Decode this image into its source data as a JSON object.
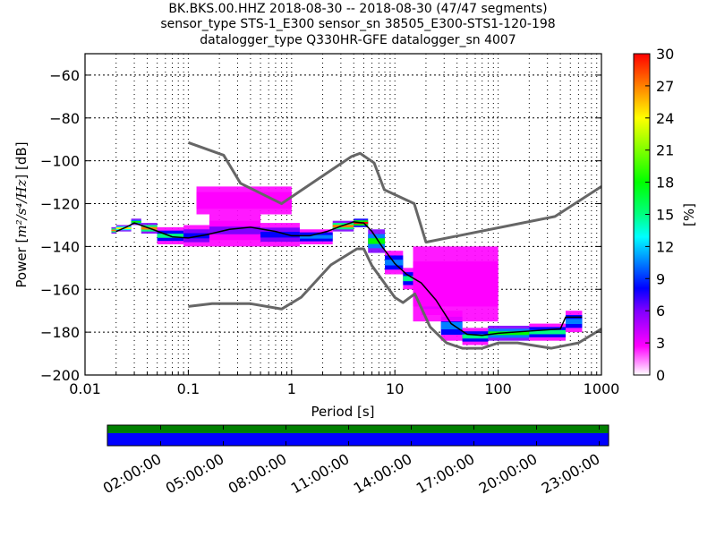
{
  "title_lines": [
    "BK.BKS.00.HHZ   2018-08-30 -- 2018-08-30  (47/47 segments)",
    "sensor_type STS-1_E300 sensor_sn 38505_E300-STS1-120-198",
    "datalogger_type Q330HR-GFE datalogger_sn 4007"
  ],
  "chart_data": {
    "type": "heatmap",
    "title": "BK.BKS.00.HHZ   2018-08-30 -- 2018-08-30  (47/47 segments)",
    "xlabel": "Period [s]",
    "ylabel": "Power [m^2/s^4/Hz] [dB]",
    "ylabel_parts": {
      "prefix": "Power [",
      "unit": "m²/s⁴/Hz",
      "suffix": "] [dB]"
    },
    "xscale": "log",
    "xlim": [
      0.01,
      1000
    ],
    "ylim": [
      -200,
      -50
    ],
    "xticks": [
      0.01,
      0.1,
      1,
      10,
      100,
      1000
    ],
    "xtick_labels": [
      "0.01",
      "0.1",
      "1",
      "10",
      "100",
      "1000"
    ],
    "yticks": [
      -60,
      -80,
      -100,
      -120,
      -140,
      -160,
      -180,
      -200
    ],
    "ytick_labels": [
      "−60",
      "−80",
      "−100",
      "−120",
      "−140",
      "−160",
      "−180",
      "−200"
    ],
    "grid": true,
    "colorbar": {
      "label": "[%]",
      "range": [
        0,
        30
      ],
      "ticks": [
        0,
        3,
        6,
        9,
        12,
        15,
        18,
        21,
        24,
        27,
        30
      ],
      "tick_labels": [
        "0",
        "3",
        "6",
        "9",
        "12",
        "15",
        "18",
        "21",
        "24",
        "27",
        "30"
      ],
      "colors": [
        "#ffffff",
        "#ff00ff",
        "#8000ff",
        "#0000ff",
        "#0080ff",
        "#00ffff",
        "#00ff80",
        "#00ff00",
        "#80ff00",
        "#ffff00",
        "#ff8000",
        "#ff0000"
      ]
    },
    "noise_models": [
      {
        "name": "NHNM",
        "color": "#666666",
        "points": [
          [
            0.1,
            -91.5
          ],
          [
            0.22,
            -97.4
          ],
          [
            0.32,
            -110.5
          ],
          [
            0.8,
            -120
          ],
          [
            3.8,
            -98
          ],
          [
            4.6,
            -96.5
          ],
          [
            6.3,
            -101
          ],
          [
            7.9,
            -113.5
          ],
          [
            15.4,
            -120
          ],
          [
            20,
            -138
          ],
          [
            354.8,
            -126
          ],
          [
            1000,
            -112
          ]
        ]
      },
      {
        "name": "NLNM",
        "color": "#666666",
        "points": [
          [
            0.1,
            -168
          ],
          [
            0.17,
            -166.7
          ],
          [
            0.4,
            -166.7
          ],
          [
            0.8,
            -169.2
          ],
          [
            1.24,
            -163.7
          ],
          [
            2.4,
            -148.6
          ],
          [
            4.3,
            -141.1
          ],
          [
            5,
            -141.1
          ],
          [
            6,
            -149
          ],
          [
            10,
            -163.8
          ],
          [
            12,
            -166.2
          ],
          [
            15.6,
            -162.1
          ],
          [
            21.9,
            -177.5
          ],
          [
            31.6,
            -185
          ],
          [
            45,
            -187.5
          ],
          [
            70,
            -187.5
          ],
          [
            101,
            -185
          ],
          [
            154,
            -185
          ],
          [
            328,
            -187.5
          ],
          [
            600,
            -185
          ],
          [
            1000,
            -178.5
          ]
        ]
      }
    ],
    "mode_curve": {
      "name": "mode",
      "color": "#000000",
      "points": [
        [
          0.02,
          -133
        ],
        [
          0.025,
          -131
        ],
        [
          0.03,
          -129
        ],
        [
          0.045,
          -132
        ],
        [
          0.07,
          -135.5
        ],
        [
          0.1,
          -136
        ],
        [
          0.15,
          -134.5
        ],
        [
          0.25,
          -132
        ],
        [
          0.4,
          -131
        ],
        [
          0.7,
          -133
        ],
        [
          1.0,
          -135
        ],
        [
          1.5,
          -135
        ],
        [
          2.2,
          -133
        ],
        [
          3.0,
          -130.5
        ],
        [
          4.0,
          -128.5
        ],
        [
          5.0,
          -129
        ],
        [
          6.0,
          -133
        ],
        [
          7.5,
          -140
        ],
        [
          10,
          -148
        ],
        [
          13,
          -153
        ],
        [
          18,
          -157
        ],
        [
          25,
          -165
        ],
        [
          35,
          -176
        ],
        [
          50,
          -181
        ],
        [
          70,
          -181.5
        ],
        [
          100,
          -180.5
        ],
        [
          200,
          -179.5
        ],
        [
          400,
          -178.5
        ],
        [
          450,
          -173
        ],
        [
          650,
          -173
        ]
      ]
    },
    "density_bands": [
      {
        "x": [
          0.018,
          0.02
        ],
        "y": [
          -134,
          -131
        ],
        "pct": 27
      },
      {
        "x": [
          0.02,
          0.028
        ],
        "y": [
          -133,
          -130
        ],
        "pct": 24
      },
      {
        "x": [
          0.028,
          0.035
        ],
        "y": [
          -130,
          -127
        ],
        "pct": 18
      },
      {
        "x": [
          0.035,
          0.05
        ],
        "y": [
          -134,
          -129
        ],
        "pct": 27
      },
      {
        "x": [
          0.05,
          0.09
        ],
        "y": [
          -139,
          -131
        ],
        "pct": 15
      },
      {
        "x": [
          0.09,
          0.16
        ],
        "y": [
          -140,
          -130
        ],
        "pct": 9
      },
      {
        "x": [
          0.16,
          0.5
        ],
        "y": [
          -140,
          -125
        ],
        "pct": 6
      },
      {
        "x": [
          0.5,
          1.2
        ],
        "y": [
          -140,
          -129
        ],
        "pct": 9
      },
      {
        "x": [
          1.2,
          2.5
        ],
        "y": [
          -139,
          -132
        ],
        "pct": 12
      },
      {
        "x": [
          2.5,
          4.0
        ],
        "y": [
          -133,
          -128
        ],
        "pct": 27
      },
      {
        "x": [
          4.0,
          5.5
        ],
        "y": [
          -131,
          -127
        ],
        "pct": 30
      },
      {
        "x": [
          5.5,
          8.0
        ],
        "y": [
          -143,
          -132
        ],
        "pct": 18
      },
      {
        "x": [
          8.0,
          12
        ],
        "y": [
          -153,
          -142
        ],
        "pct": 12
      },
      {
        "x": [
          12,
          18
        ],
        "y": [
          -160,
          -150
        ],
        "pct": 15
      },
      {
        "x": [
          18,
          28
        ],
        "y": [
          -172,
          -158
        ],
        "pct": 12
      },
      {
        "x": [
          28,
          45
        ],
        "y": [
          -184,
          -170
        ],
        "pct": 12
      },
      {
        "x": [
          45,
          80
        ],
        "y": [
          -186,
          -178
        ],
        "pct": 15
      },
      {
        "x": [
          80,
          200
        ],
        "y": [
          -184,
          -177
        ],
        "pct": 18
      },
      {
        "x": [
          200,
          450
        ],
        "y": [
          -184,
          -176
        ],
        "pct": 15
      },
      {
        "x": [
          450,
          650
        ],
        "y": [
          -180,
          -170
        ],
        "pct": 12
      },
      {
        "x": [
          0.12,
          1.0
        ],
        "y": [
          -125,
          -112
        ],
        "pct": 3
      },
      {
        "x": [
          15,
          100
        ],
        "y": [
          -175,
          -140
        ],
        "pct": 3
      }
    ]
  },
  "timeline": {
    "tick_labels": [
      "02:00:00",
      "05:00:00",
      "08:00:00",
      "11:00:00",
      "14:00:00",
      "17:00:00",
      "20:00:00",
      "23:00:00"
    ],
    "hours": [
      2,
      5,
      8,
      11,
      14,
      17,
      20,
      23
    ],
    "range_hours": [
      -0.55,
      23.45
    ],
    "rows": [
      {
        "name": "data-availability",
        "color": "#008000"
      },
      {
        "name": "segments-used",
        "color": "#0000ff"
      }
    ]
  }
}
